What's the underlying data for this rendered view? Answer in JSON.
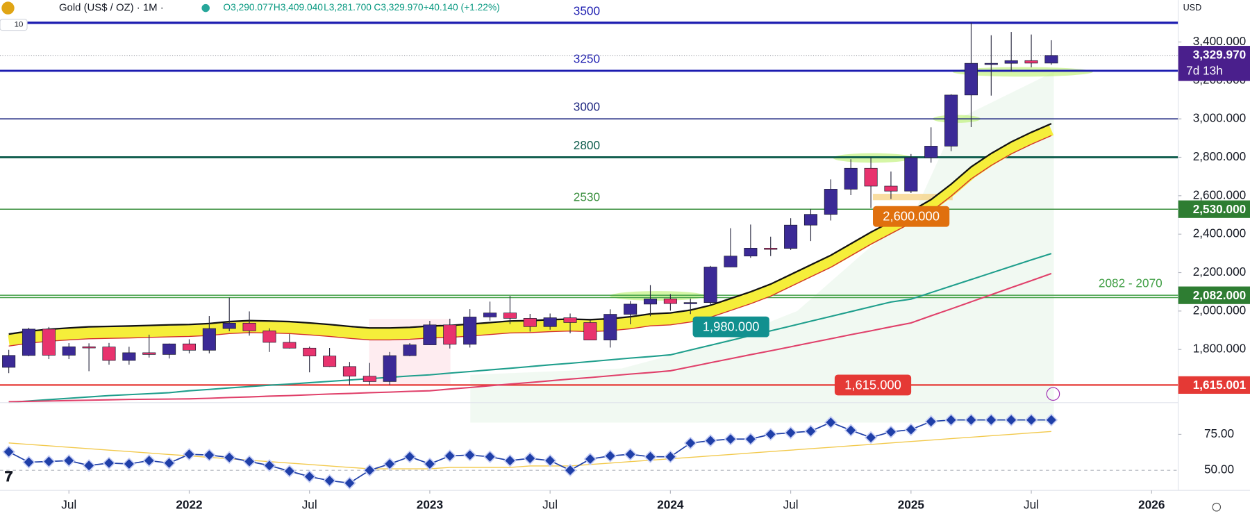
{
  "chart_data": {
    "type": "candlestick",
    "title": "Gold (US$ / OZ) · 1M ·",
    "currency": "USD",
    "interval_badge": "10",
    "readout": [
      "O3,290.077",
      "H3,409.040",
      "L3,281.700",
      "C3,329.970",
      "+40.140 (+1.22%)"
    ],
    "x": [
      "2021-04",
      "2021-05",
      "2021-06",
      "2021-07",
      "2021-08",
      "2021-09",
      "2021-10",
      "2021-11",
      "2021-12",
      "2022-01",
      "2022-02",
      "2022-03",
      "2022-04",
      "2022-05",
      "2022-06",
      "2022-07",
      "2022-08",
      "2022-09",
      "2022-10",
      "2022-11",
      "2022-12",
      "2023-01",
      "2023-02",
      "2023-03",
      "2023-04",
      "2023-05",
      "2023-06",
      "2023-07",
      "2023-08",
      "2023-09",
      "2023-10",
      "2023-11",
      "2023-12",
      "2024-01",
      "2024-02",
      "2024-03",
      "2024-04",
      "2024-05",
      "2024-06",
      "2024-07",
      "2024-08",
      "2024-09",
      "2024-10",
      "2024-11",
      "2024-12",
      "2025-01",
      "2025-02",
      "2025-03",
      "2025-04",
      "2025-05",
      "2025-06",
      "2025-07",
      "2025-08"
    ],
    "open": [
      1707,
      1769,
      1906,
      1770,
      1814,
      1813,
      1743,
      1783,
      1774,
      1829,
      1796,
      1909,
      1937,
      1897,
      1837,
      1807,
      1766,
      1711,
      1661,
      1633,
      1768,
      1824,
      1928,
      1827,
      1969,
      1990,
      1962,
      1919,
      1965,
      1940,
      1849,
      1983,
      2036,
      2063,
      2039,
      2044,
      2229,
      2286,
      2327,
      2326,
      2447,
      2503,
      2634,
      2743,
      2650,
      2624,
      2798,
      2858,
      3124,
      3289,
      3289,
      3303,
      3290.077
    ],
    "high": [
      1798,
      1913,
      1917,
      1833,
      1832,
      1834,
      1814,
      1877,
      1831,
      1853,
      1974,
      2070,
      1998,
      1910,
      1880,
      1815,
      1808,
      1735,
      1730,
      1787,
      1833,
      1949,
      1960,
      2010,
      2049,
      2079,
      1985,
      1987,
      1987,
      1953,
      2009,
      2052,
      2135,
      2088,
      2065,
      2235,
      2431,
      2450,
      2387,
      2483,
      2531,
      2685,
      2790,
      2801,
      2726,
      2817,
      2956,
      3128,
      3500,
      3435,
      3452,
      3439,
      3409.04
    ],
    "low": [
      1677,
      1765,
      1750,
      1750,
      1687,
      1721,
      1721,
      1758,
      1753,
      1780,
      1780,
      1895,
      1872,
      1787,
      1805,
      1681,
      1709,
      1615,
      1617,
      1616,
      1765,
      1823,
      1805,
      1810,
      1950,
      1932,
      1893,
      1903,
      1884,
      1848,
      1810,
      1931,
      1973,
      2002,
      1984,
      2030,
      2228,
      2277,
      2286,
      2318,
      2364,
      2471,
      2603,
      2536,
      2583,
      2614,
      2772,
      2832,
      2957,
      3121,
      3247,
      3268,
      3281.7
    ],
    "close": [
      1769,
      1906,
      1770,
      1814,
      1813,
      1743,
      1783,
      1774,
      1829,
      1796,
      1909,
      1937,
      1897,
      1837,
      1807,
      1766,
      1711,
      1661,
      1633,
      1768,
      1824,
      1928,
      1827,
      1969,
      1990,
      1962,
      1919,
      1965,
      1940,
      1849,
      1983,
      2036,
      2063,
      2039,
      2044,
      2229,
      2286,
      2327,
      2326,
      2447,
      2503,
      2634,
      2743,
      2650,
      2624,
      2798,
      2858,
      3124,
      3289,
      3289,
      3303,
      3290,
      3329.97
    ],
    "up_color": "#3b2a96",
    "down_color": "#e8336e",
    "ylim": [
      1523,
      3618
    ],
    "yticks": [
      {
        "value": 1800,
        "label": "1,800.000"
      },
      {
        "value": 2000,
        "label": "2,000.000"
      },
      {
        "value": 2200,
        "label": "2,200.000"
      },
      {
        "value": 2400,
        "label": "2,400.000"
      },
      {
        "value": 2600,
        "label": "2,600.000"
      },
      {
        "value": 2800,
        "label": "2,800.000"
      },
      {
        "value": 3000,
        "label": "3,000.000"
      },
      {
        "value": 3200,
        "label": "3,200.000"
      },
      {
        "value": 3400,
        "label": "3,400.000"
      }
    ],
    "xticks": [
      {
        "value": "2021-07",
        "label": "Jul"
      },
      {
        "value": "2022-01",
        "label": "2022"
      },
      {
        "value": "2022-07",
        "label": "Jul"
      },
      {
        "value": "2023-01",
        "label": "2023"
      },
      {
        "value": "2023-07",
        "label": "Jul"
      },
      {
        "value": "2024-01",
        "label": "2024"
      },
      {
        "value": "2024-07",
        "label": "Jul"
      },
      {
        "value": "2025-01",
        "label": "2025"
      },
      {
        "value": "2025-07",
        "label": "Jul"
      },
      {
        "value": "2026-01",
        "label": "2026"
      }
    ],
    "grid": false,
    "overlays": [
      {
        "color": "#111111",
        "values": [
          1880,
          1895,
          1905,
          1912,
          1918,
          1920,
          1922,
          1925,
          1928,
          1930,
          1935,
          1945,
          1950,
          1948,
          1945,
          1938,
          1930,
          1920,
          1912,
          1912,
          1915,
          1922,
          1925,
          1932,
          1940,
          1948,
          1950,
          1955,
          1958,
          1955,
          1960,
          1970,
          1985,
          1990,
          2005,
          2030,
          2065,
          2100,
          2140,
          2190,
          2240,
          2290,
          2350,
          2410,
          2465,
          2520,
          2580,
          2660,
          2750,
          2820,
          2880,
          2930,
          2975
        ]
      },
      {
        "color": "#1e9e8c",
        "values": [
          1525,
          1532,
          1539,
          1546,
          1553,
          1560,
          1565,
          1570,
          1575,
          1585,
          1592,
          1600,
          1607,
          1614,
          1620,
          1627,
          1634,
          1641,
          1648,
          1655,
          1662,
          1668,
          1677,
          1685,
          1694,
          1702,
          1711,
          1720,
          1728,
          1737,
          1746,
          1755,
          1763,
          1772,
          1797,
          1822,
          1847,
          1872,
          1897,
          1922,
          1947,
          1972,
          1997,
          2022,
          2047,
          2062,
          2096,
          2130,
          2164,
          2198,
          2232,
          2266,
          2299
        ]
      },
      {
        "color": "#e0406a",
        "values": [
          1528,
          1530,
          1532,
          1534,
          1536,
          1538,
          1540,
          1541,
          1542,
          1543,
          1546,
          1550,
          1553,
          1557,
          1560,
          1564,
          1568,
          1571,
          1575,
          1578,
          1582,
          1585,
          1594,
          1602,
          1611,
          1620,
          1628,
          1637,
          1646,
          1654,
          1663,
          1672,
          1680,
          1689,
          1710,
          1731,
          1752,
          1773,
          1793,
          1814,
          1835,
          1856,
          1877,
          1897,
          1918,
          1938,
          1975,
          2011,
          2048,
          2085,
          2122,
          2158,
          2195
        ]
      }
    ],
    "levels": [
      {
        "values": [
          3500
        ],
        "label": "3500",
        "color": "#1c1cb0",
        "width": 3
      },
      {
        "values": [
          3250
        ],
        "label": "3250",
        "color": "#1c1cb0",
        "width": 2.5
      },
      {
        "values": [
          3000
        ],
        "label": "3000",
        "color": "#1a237e",
        "width": 1.3
      },
      {
        "values": [
          2800
        ],
        "label": "2800",
        "color": "#0b5a4a",
        "width": 2.5
      },
      {
        "values": [
          2530
        ],
        "label": "2530",
        "color": "#388e3c",
        "width": 1.3
      },
      {
        "values": [
          2082,
          2070
        ],
        "label": "2082 - 2070",
        "color": "#43a047",
        "width": 1.3
      },
      {
        "values": [
          1615
        ],
        "color": "#e53935",
        "width": 2
      }
    ],
    "price_badges": [
      {
        "value": 2530,
        "label": "2,530.000",
        "color": "#2e7d32"
      },
      {
        "value": 2082,
        "label": "2,082.000",
        "color": "#2e7d32"
      },
      {
        "value": 1615.001,
        "label": "1,615.001",
        "color": "#e53935"
      }
    ],
    "current": {
      "value": 3329.97,
      "label": "3,329.970",
      "countdown": "7d 13h",
      "color": "#4a1f8c"
    },
    "annotations": [
      {
        "value": 2600,
        "label": "2,600.000",
        "color": "#e0700e"
      },
      {
        "value": 1980,
        "label": "1,980.000",
        "color": "#11908f"
      },
      {
        "value": 1615,
        "label": "1,615.000",
        "color": "#e53935"
      }
    ],
    "oscillator": {
      "color": "#1f3fa8",
      "values": [
        62.8,
        55.6,
        56.1,
        56.7,
        53.3,
        55,
        54.4,
        56.7,
        55,
        61.1,
        60.6,
        58.9,
        56.1,
        53.3,
        49.4,
        45.6,
        42.8,
        41.1,
        50,
        54.4,
        59.4,
        54.4,
        60,
        60.6,
        59.4,
        56.7,
        58.3,
        56.7,
        50,
        57.8,
        60,
        61.1,
        59.4,
        59.4,
        68.9,
        70.6,
        71.7,
        71.7,
        75,
        76.1,
        77.2,
        83.3,
        77.8,
        72.8,
        76.7,
        78.3,
        83.9,
        85,
        85,
        85,
        85,
        85,
        85
      ],
      "ma_color": "#f2c94c",
      "ma_values": [
        69,
        68,
        67,
        66,
        65,
        64,
        63,
        62,
        61,
        60,
        59,
        58,
        57,
        56,
        55,
        54,
        53,
        52,
        51,
        51,
        51,
        51,
        52,
        52,
        52,
        52,
        53,
        53,
        53,
        54,
        55,
        56,
        57,
        58,
        59,
        60,
        61,
        62,
        63,
        64,
        65,
        66,
        67,
        68,
        69,
        70,
        71,
        72,
        73,
        74,
        75,
        76,
        77
      ],
      "ylim": [
        36,
        97
      ],
      "yticks": [
        {
          "value": 50,
          "label": "50.00"
        },
        {
          "value": 75,
          "label": "75.00"
        }
      ]
    }
  }
}
